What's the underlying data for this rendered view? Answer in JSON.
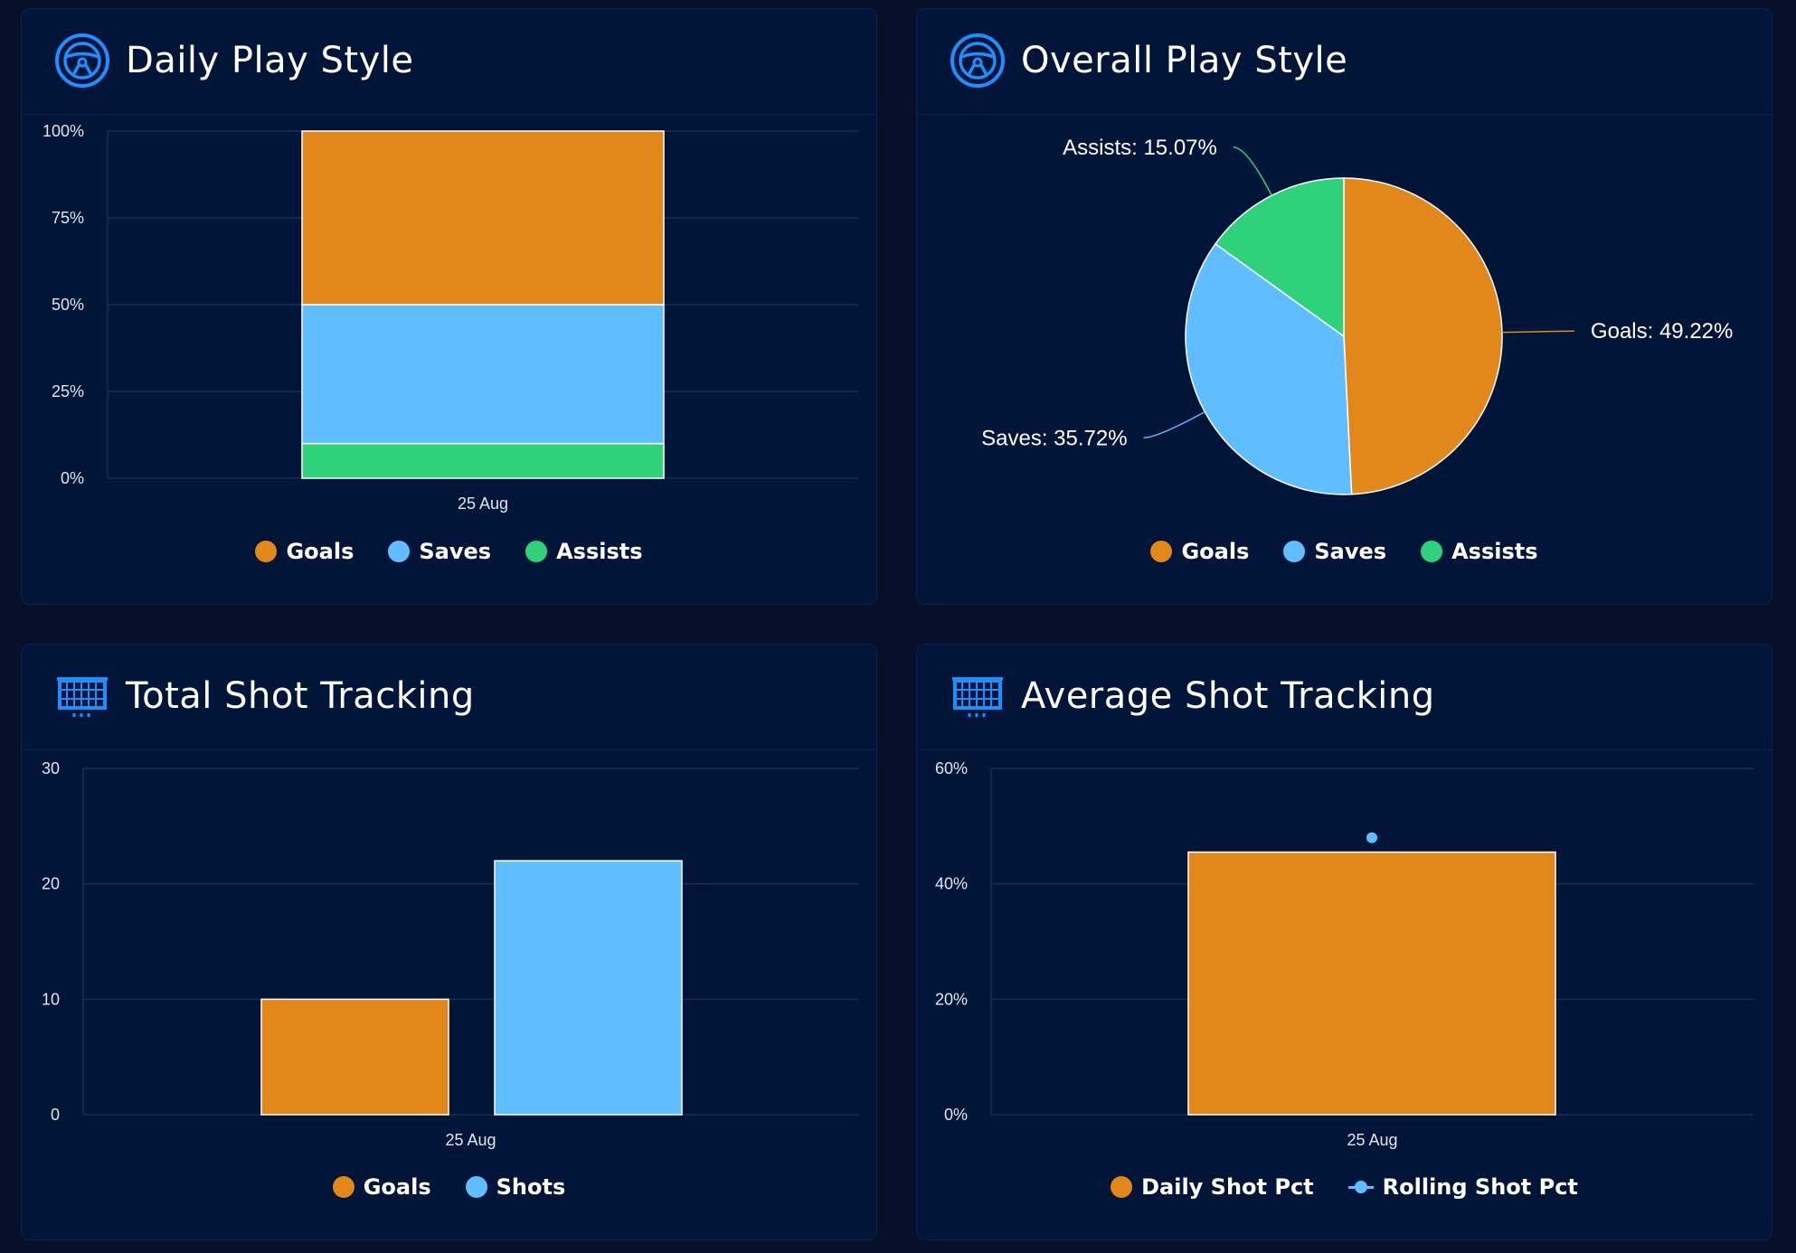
{
  "colors": {
    "goals": "#e2871a",
    "saves": "#60bdfe",
    "assists": "#2fd27a",
    "shots": "#60bdfe",
    "grid": "#1a2e55",
    "icon": "#1f8fff"
  },
  "panels": [
    {
      "title": "Daily Play Style",
      "icon": "steering-wheel-icon",
      "legend": [
        {
          "label": "Goals",
          "color": "#e2871a"
        },
        {
          "label": "Saves",
          "color": "#60bdfe"
        },
        {
          "label": "Assists",
          "color": "#2fd27a"
        }
      ]
    },
    {
      "title": "Overall Play Style",
      "icon": "steering-wheel-icon",
      "legend": [
        {
          "label": "Goals",
          "color": "#e2871a"
        },
        {
          "label": "Saves",
          "color": "#60bdfe"
        },
        {
          "label": "Assists",
          "color": "#2fd27a"
        }
      ]
    },
    {
      "title": "Total Shot Tracking",
      "icon": "goal-net-icon",
      "legend": [
        {
          "label": "Goals",
          "color": "#e2871a"
        },
        {
          "label": "Shots",
          "color": "#60bdfe"
        }
      ]
    },
    {
      "title": "Average Shot Tracking",
      "icon": "goal-net-icon",
      "legend": [
        {
          "label": "Daily Shot Pct",
          "color": "#e2871a"
        },
        {
          "label": "Rolling Shot Pct",
          "color": "#60bdfe"
        }
      ]
    }
  ],
  "chart_data": [
    {
      "type": "bar",
      "stacked": "percent",
      "categories": [
        "25 Aug"
      ],
      "series": [
        {
          "name": "Goals",
          "values": [
            50
          ]
        },
        {
          "name": "Saves",
          "values": [
            40
          ]
        },
        {
          "name": "Assists",
          "values": [
            10
          ]
        }
      ],
      "yticks": [
        "0%",
        "25%",
        "50%",
        "75%",
        "100%"
      ],
      "ylim": [
        0,
        100
      ],
      "legend": "bottom"
    },
    {
      "type": "pie",
      "slices": [
        {
          "name": "Goals",
          "value": 49.22,
          "label": "Goals: 49.22%"
        },
        {
          "name": "Saves",
          "value": 35.72,
          "label": "Saves: 35.72%"
        },
        {
          "name": "Assists",
          "value": 15.07,
          "label": "Assists: 15.07%"
        }
      ],
      "legend": "bottom"
    },
    {
      "type": "bar",
      "categories": [
        "25 Aug"
      ],
      "series": [
        {
          "name": "Goals",
          "values": [
            10
          ]
        },
        {
          "name": "Shots",
          "values": [
            22
          ]
        }
      ],
      "yticks": [
        "0",
        "10",
        "20",
        "30"
      ],
      "ylim": [
        0,
        30
      ],
      "legend": "bottom"
    },
    {
      "type": "bar",
      "categories": [
        "25 Aug"
      ],
      "series": [
        {
          "name": "Daily Shot Pct",
          "type": "bar",
          "values": [
            45.5
          ]
        },
        {
          "name": "Rolling Shot Pct",
          "type": "line",
          "values": [
            48
          ]
        }
      ],
      "yticks": [
        "0%",
        "20%",
        "40%",
        "60%"
      ],
      "ylim": [
        0,
        60
      ],
      "legend": "bottom"
    }
  ]
}
